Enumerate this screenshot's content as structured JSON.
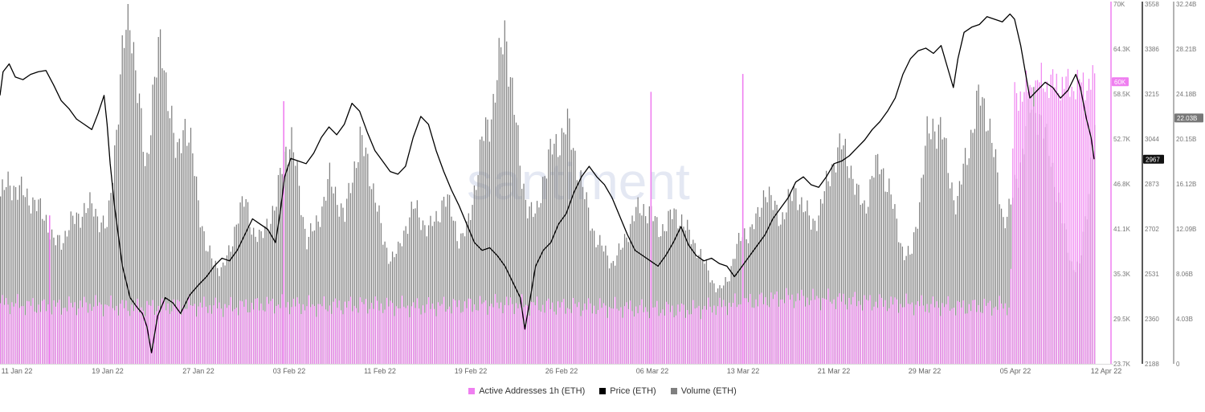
{
  "chart_data": {
    "type": "bar",
    "watermark": "santiment",
    "x_ticks": [
      "11 Jan 22",
      "19 Jan 22",
      "27 Jan 22",
      "03 Feb 22",
      "11 Feb 22",
      "19 Feb 22",
      "26 Feb 22",
      "06 Mar 22",
      "13 Mar 22",
      "21 Mar 22",
      "29 Mar 22",
      "05 Apr 22",
      "12 Apr 22"
    ],
    "axes": {
      "active_addresses": {
        "ticks": [
          "70K",
          "64.3K",
          "58.5K",
          "52.7K",
          "46.8K",
          "41.1K",
          "35.3K",
          "29.5K",
          "23.7K"
        ],
        "ylim": [
          23700,
          70000
        ],
        "last_value_label": "60K",
        "color": "#ef7ff0"
      },
      "price": {
        "ticks": [
          "3558",
          "3386",
          "3215",
          "3044",
          "2873",
          "2702",
          "2531",
          "2360",
          "2188"
        ],
        "ylim": [
          2188,
          3558
        ],
        "last_value_label": "2967",
        "color": "#000000"
      },
      "volume": {
        "ticks": [
          "32.24B",
          "28.21B",
          "24.18B",
          "20.15B",
          "16.12B",
          "12.09B",
          "8.06B",
          "4.03B",
          "0"
        ],
        "ylim": [
          0,
          32.24
        ],
        "last_value_label": "22.03B",
        "color": "#7f7f7f"
      }
    },
    "series": [
      {
        "name": "Active Addresses 1h (ETH)",
        "color": "#ef7ff0"
      },
      {
        "name": "Price (ETH)",
        "color": "#000000"
      },
      {
        "name": "Volume (ETH)",
        "color": "#7f7f7f"
      }
    ],
    "price_points": [
      {
        "x": 0.0,
        "y": 3210
      },
      {
        "x": 0.2,
        "y": 3300
      },
      {
        "x": 0.6,
        "y": 3330
      },
      {
        "x": 1.0,
        "y": 3280
      },
      {
        "x": 1.5,
        "y": 3270
      },
      {
        "x": 2.0,
        "y": 3290
      },
      {
        "x": 2.5,
        "y": 3300
      },
      {
        "x": 3.0,
        "y": 3305
      },
      {
        "x": 3.5,
        "y": 3250
      },
      {
        "x": 4.0,
        "y": 3190
      },
      {
        "x": 4.5,
        "y": 3160
      },
      {
        "x": 5.0,
        "y": 3120
      },
      {
        "x": 5.5,
        "y": 3100
      },
      {
        "x": 6.0,
        "y": 3080
      },
      {
        "x": 6.4,
        "y": 3140
      },
      {
        "x": 6.8,
        "y": 3210
      },
      {
        "x": 7.0,
        "y": 3100
      },
      {
        "x": 7.2,
        "y": 2950
      },
      {
        "x": 7.5,
        "y": 2780
      },
      {
        "x": 8.0,
        "y": 2560
      },
      {
        "x": 8.5,
        "y": 2440
      },
      {
        "x": 9.0,
        "y": 2400
      },
      {
        "x": 9.3,
        "y": 2380
      },
      {
        "x": 9.6,
        "y": 2330
      },
      {
        "x": 9.9,
        "y": 2230
      },
      {
        "x": 10.3,
        "y": 2370
      },
      {
        "x": 10.8,
        "y": 2440
      },
      {
        "x": 11.3,
        "y": 2420
      },
      {
        "x": 11.8,
        "y": 2380
      },
      {
        "x": 12.4,
        "y": 2450
      },
      {
        "x": 13.0,
        "y": 2490
      },
      {
        "x": 13.5,
        "y": 2520
      },
      {
        "x": 14.0,
        "y": 2560
      },
      {
        "x": 14.5,
        "y": 2590
      },
      {
        "x": 15.0,
        "y": 2580
      },
      {
        "x": 15.5,
        "y": 2620
      },
      {
        "x": 16.0,
        "y": 2680
      },
      {
        "x": 16.5,
        "y": 2740
      },
      {
        "x": 17.0,
        "y": 2720
      },
      {
        "x": 17.5,
        "y": 2700
      },
      {
        "x": 18.0,
        "y": 2650
      },
      {
        "x": 18.3,
        "y": 2760
      },
      {
        "x": 18.6,
        "y": 2900
      },
      {
        "x": 19.0,
        "y": 2970
      },
      {
        "x": 19.5,
        "y": 2960
      },
      {
        "x": 20.0,
        "y": 2950
      },
      {
        "x": 20.5,
        "y": 2990
      },
      {
        "x": 21.0,
        "y": 3050
      },
      {
        "x": 21.5,
        "y": 3090
      },
      {
        "x": 22.0,
        "y": 3060
      },
      {
        "x": 22.5,
        "y": 3100
      },
      {
        "x": 23.0,
        "y": 3180
      },
      {
        "x": 23.5,
        "y": 3150
      },
      {
        "x": 24.0,
        "y": 3070
      },
      {
        "x": 24.5,
        "y": 3000
      },
      {
        "x": 25.0,
        "y": 2960
      },
      {
        "x": 25.5,
        "y": 2920
      },
      {
        "x": 26.0,
        "y": 2910
      },
      {
        "x": 26.5,
        "y": 2940
      },
      {
        "x": 27.0,
        "y": 3050
      },
      {
        "x": 27.5,
        "y": 3130
      },
      {
        "x": 28.0,
        "y": 3100
      },
      {
        "x": 28.5,
        "y": 3000
      },
      {
        "x": 29.0,
        "y": 2920
      },
      {
        "x": 29.5,
        "y": 2850
      },
      {
        "x": 30.0,
        "y": 2790
      },
      {
        "x": 30.5,
        "y": 2720
      },
      {
        "x": 31.0,
        "y": 2650
      },
      {
        "x": 31.5,
        "y": 2620
      },
      {
        "x": 32.0,
        "y": 2630
      },
      {
        "x": 32.5,
        "y": 2600
      },
      {
        "x": 33.0,
        "y": 2560
      },
      {
        "x": 33.5,
        "y": 2500
      },
      {
        "x": 34.0,
        "y": 2440
      },
      {
        "x": 34.3,
        "y": 2320
      },
      {
        "x": 34.6,
        "y": 2420
      },
      {
        "x": 35.0,
        "y": 2560
      },
      {
        "x": 35.5,
        "y": 2620
      },
      {
        "x": 36.0,
        "y": 2650
      },
      {
        "x": 36.5,
        "y": 2720
      },
      {
        "x": 37.0,
        "y": 2760
      },
      {
        "x": 37.5,
        "y": 2840
      },
      {
        "x": 38.0,
        "y": 2900
      },
      {
        "x": 38.5,
        "y": 2940
      },
      {
        "x": 39.0,
        "y": 2900
      },
      {
        "x": 39.5,
        "y": 2870
      },
      {
        "x": 40.0,
        "y": 2820
      },
      {
        "x": 40.5,
        "y": 2750
      },
      {
        "x": 41.0,
        "y": 2680
      },
      {
        "x": 41.5,
        "y": 2620
      },
      {
        "x": 42.0,
        "y": 2600
      },
      {
        "x": 42.5,
        "y": 2580
      },
      {
        "x": 43.0,
        "y": 2560
      },
      {
        "x": 43.5,
        "y": 2600
      },
      {
        "x": 44.0,
        "y": 2650
      },
      {
        "x": 44.5,
        "y": 2710
      },
      {
        "x": 45.0,
        "y": 2640
      },
      {
        "x": 45.5,
        "y": 2600
      },
      {
        "x": 46.0,
        "y": 2580
      },
      {
        "x": 46.5,
        "y": 2590
      },
      {
        "x": 47.0,
        "y": 2570
      },
      {
        "x": 47.5,
        "y": 2560
      },
      {
        "x": 48.0,
        "y": 2520
      },
      {
        "x": 48.5,
        "y": 2560
      },
      {
        "x": 49.0,
        "y": 2600
      },
      {
        "x": 49.5,
        "y": 2640
      },
      {
        "x": 50.0,
        "y": 2680
      },
      {
        "x": 50.5,
        "y": 2740
      },
      {
        "x": 51.0,
        "y": 2780
      },
      {
        "x": 51.5,
        "y": 2820
      },
      {
        "x": 52.0,
        "y": 2880
      },
      {
        "x": 52.5,
        "y": 2900
      },
      {
        "x": 53.0,
        "y": 2870
      },
      {
        "x": 53.5,
        "y": 2860
      },
      {
        "x": 54.0,
        "y": 2900
      },
      {
        "x": 54.5,
        "y": 2950
      },
      {
        "x": 55.0,
        "y": 2960
      },
      {
        "x": 55.5,
        "y": 2980
      },
      {
        "x": 56.0,
        "y": 3010
      },
      {
        "x": 56.5,
        "y": 3040
      },
      {
        "x": 57.0,
        "y": 3080
      },
      {
        "x": 57.5,
        "y": 3110
      },
      {
        "x": 58.0,
        "y": 3150
      },
      {
        "x": 58.5,
        "y": 3200
      },
      {
        "x": 59.0,
        "y": 3290
      },
      {
        "x": 59.5,
        "y": 3350
      },
      {
        "x": 60.0,
        "y": 3380
      },
      {
        "x": 60.5,
        "y": 3390
      },
      {
        "x": 61.0,
        "y": 3370
      },
      {
        "x": 61.5,
        "y": 3400
      },
      {
        "x": 62.0,
        "y": 3300
      },
      {
        "x": 62.3,
        "y": 3240
      },
      {
        "x": 62.6,
        "y": 3350
      },
      {
        "x": 63.0,
        "y": 3450
      },
      {
        "x": 63.5,
        "y": 3470
      },
      {
        "x": 64.0,
        "y": 3480
      },
      {
        "x": 64.5,
        "y": 3510
      },
      {
        "x": 65.0,
        "y": 3500
      },
      {
        "x": 65.5,
        "y": 3490
      },
      {
        "x": 66.0,
        "y": 3520
      },
      {
        "x": 66.3,
        "y": 3500
      },
      {
        "x": 66.7,
        "y": 3400
      },
      {
        "x": 67.0,
        "y": 3300
      },
      {
        "x": 67.3,
        "y": 3200
      },
      {
        "x": 67.8,
        "y": 3230
      },
      {
        "x": 68.3,
        "y": 3260
      },
      {
        "x": 68.8,
        "y": 3240
      },
      {
        "x": 69.3,
        "y": 3200
      },
      {
        "x": 69.8,
        "y": 3230
      },
      {
        "x": 70.3,
        "y": 3290
      },
      {
        "x": 70.6,
        "y": 3240
      },
      {
        "x": 71.0,
        "y": 3120
      },
      {
        "x": 71.3,
        "y": 3050
      },
      {
        "x": 71.5,
        "y": 2967
      }
    ],
    "volume_profile": [
      {
        "x": 0.0,
        "y": 15.0
      },
      {
        "x": 0.6,
        "y": 16.3
      },
      {
        "x": 1.2,
        "y": 15.5
      },
      {
        "x": 2.0,
        "y": 14.8
      },
      {
        "x": 3.0,
        "y": 13.0
      },
      {
        "x": 3.5,
        "y": 10.8
      },
      {
        "x": 4.0,
        "y": 11.0
      },
      {
        "x": 4.5,
        "y": 12.5
      },
      {
        "x": 5.0,
        "y": 13.0
      },
      {
        "x": 5.5,
        "y": 14.0
      },
      {
        "x": 6.0,
        "y": 14.0
      },
      {
        "x": 6.5,
        "y": 13.0
      },
      {
        "x": 7.0,
        "y": 12.0
      },
      {
        "x": 7.5,
        "y": 20.0
      },
      {
        "x": 8.0,
        "y": 28.0
      },
      {
        "x": 8.5,
        "y": 31.5
      },
      {
        "x": 9.0,
        "y": 24.0
      },
      {
        "x": 9.5,
        "y": 17.0
      },
      {
        "x": 10.0,
        "y": 25.0
      },
      {
        "x": 10.5,
        "y": 28.5
      },
      {
        "x": 11.0,
        "y": 24.0
      },
      {
        "x": 11.5,
        "y": 18.0
      },
      {
        "x": 12.0,
        "y": 22.0
      },
      {
        "x": 12.5,
        "y": 19.0
      },
      {
        "x": 13.0,
        "y": 14.0
      },
      {
        "x": 13.5,
        "y": 10.0
      },
      {
        "x": 14.0,
        "y": 9.0
      },
      {
        "x": 14.5,
        "y": 8.5
      },
      {
        "x": 15.0,
        "y": 10.0
      },
      {
        "x": 15.5,
        "y": 13.5
      },
      {
        "x": 16.0,
        "y": 14.5
      },
      {
        "x": 16.5,
        "y": 12.0
      },
      {
        "x": 17.0,
        "y": 11.0
      },
      {
        "x": 17.5,
        "y": 13.0
      },
      {
        "x": 18.0,
        "y": 14.0
      },
      {
        "x": 18.5,
        "y": 19.0
      },
      {
        "x": 19.0,
        "y": 20.0
      },
      {
        "x": 19.5,
        "y": 16.0
      },
      {
        "x": 20.0,
        "y": 11.0
      },
      {
        "x": 20.5,
        "y": 12.0
      },
      {
        "x": 21.0,
        "y": 14.0
      },
      {
        "x": 21.5,
        "y": 16.5
      },
      {
        "x": 22.0,
        "y": 15.0
      },
      {
        "x": 22.5,
        "y": 13.0
      },
      {
        "x": 23.0,
        "y": 17.0
      },
      {
        "x": 23.5,
        "y": 20.0
      },
      {
        "x": 24.0,
        "y": 18.0
      },
      {
        "x": 24.5,
        "y": 15.0
      },
      {
        "x": 25.0,
        "y": 11.0
      },
      {
        "x": 25.5,
        "y": 9.5
      },
      {
        "x": 26.0,
        "y": 10.0
      },
      {
        "x": 26.5,
        "y": 12.5
      },
      {
        "x": 27.0,
        "y": 14.0
      },
      {
        "x": 27.5,
        "y": 13.0
      },
      {
        "x": 28.0,
        "y": 12.0
      },
      {
        "x": 28.5,
        "y": 13.0
      },
      {
        "x": 29.0,
        "y": 15.0
      },
      {
        "x": 29.5,
        "y": 13.5
      },
      {
        "x": 30.0,
        "y": 11.0
      },
      {
        "x": 30.5,
        "y": 12.0
      },
      {
        "x": 31.0,
        "y": 16.0
      },
      {
        "x": 31.5,
        "y": 20.0
      },
      {
        "x": 32.0,
        "y": 22.0
      },
      {
        "x": 32.5,
        "y": 26.0
      },
      {
        "x": 33.0,
        "y": 30.0
      },
      {
        "x": 33.5,
        "y": 24.0
      },
      {
        "x": 34.0,
        "y": 17.0
      },
      {
        "x": 34.5,
        "y": 14.0
      },
      {
        "x": 35.0,
        "y": 13.0
      },
      {
        "x": 35.5,
        "y": 17.0
      },
      {
        "x": 36.0,
        "y": 19.0
      },
      {
        "x": 36.5,
        "y": 20.0
      },
      {
        "x": 37.0,
        "y": 21.5
      },
      {
        "x": 37.5,
        "y": 19.0
      },
      {
        "x": 38.0,
        "y": 16.0
      },
      {
        "x": 38.5,
        "y": 13.0
      },
      {
        "x": 39.0,
        "y": 11.0
      },
      {
        "x": 39.5,
        "y": 10.0
      },
      {
        "x": 40.0,
        "y": 9.0
      },
      {
        "x": 40.5,
        "y": 10.0
      },
      {
        "x": 41.0,
        "y": 12.0
      },
      {
        "x": 41.5,
        "y": 13.5
      },
      {
        "x": 42.0,
        "y": 14.0
      },
      {
        "x": 42.5,
        "y": 13.5
      },
      {
        "x": 43.0,
        "y": 12.0
      },
      {
        "x": 43.5,
        "y": 12.5
      },
      {
        "x": 44.0,
        "y": 13.5
      },
      {
        "x": 44.5,
        "y": 13.0
      },
      {
        "x": 45.0,
        "y": 11.5
      },
      {
        "x": 45.5,
        "y": 10.5
      },
      {
        "x": 46.0,
        "y": 9.0
      },
      {
        "x": 46.5,
        "y": 7.5
      },
      {
        "x": 47.0,
        "y": 6.5
      },
      {
        "x": 47.5,
        "y": 7.5
      },
      {
        "x": 48.0,
        "y": 10.0
      },
      {
        "x": 48.5,
        "y": 11.5
      },
      {
        "x": 49.0,
        "y": 12.0
      },
      {
        "x": 49.5,
        "y": 13.0
      },
      {
        "x": 50.0,
        "y": 16.0
      },
      {
        "x": 50.5,
        "y": 14.0
      },
      {
        "x": 51.0,
        "y": 13.0
      },
      {
        "x": 51.5,
        "y": 14.5
      },
      {
        "x": 52.0,
        "y": 15.5
      },
      {
        "x": 52.5,
        "y": 14.0
      },
      {
        "x": 53.0,
        "y": 12.5
      },
      {
        "x": 53.5,
        "y": 13.5
      },
      {
        "x": 54.0,
        "y": 16.0
      },
      {
        "x": 54.5,
        "y": 18.5
      },
      {
        "x": 55.0,
        "y": 19.5
      },
      {
        "x": 55.5,
        "y": 18.0
      },
      {
        "x": 56.0,
        "y": 15.0
      },
      {
        "x": 56.5,
        "y": 14.0
      },
      {
        "x": 57.0,
        "y": 17.0
      },
      {
        "x": 57.5,
        "y": 18.0
      },
      {
        "x": 58.0,
        "y": 16.0
      },
      {
        "x": 58.5,
        "y": 13.0
      },
      {
        "x": 59.0,
        "y": 10.0
      },
      {
        "x": 59.5,
        "y": 9.5
      },
      {
        "x": 60.0,
        "y": 14.0
      },
      {
        "x": 60.5,
        "y": 20.0
      },
      {
        "x": 61.0,
        "y": 21.5
      },
      {
        "x": 61.5,
        "y": 21.0
      },
      {
        "x": 62.0,
        "y": 17.0
      },
      {
        "x": 62.5,
        "y": 14.0
      },
      {
        "x": 63.0,
        "y": 18.0
      },
      {
        "x": 63.5,
        "y": 21.0
      },
      {
        "x": 64.0,
        "y": 24.0
      },
      {
        "x": 64.5,
        "y": 22.5
      },
      {
        "x": 65.0,
        "y": 18.0
      },
      {
        "x": 65.5,
        "y": 13.0
      },
      {
        "x": 66.0,
        "y": 14.0
      },
      {
        "x": 66.5,
        "y": 17.0
      },
      {
        "x": 67.0,
        "y": 21.0
      },
      {
        "x": 67.5,
        "y": 23.5
      },
      {
        "x": 68.0,
        "y": 22.0
      },
      {
        "x": 68.5,
        "y": 19.0
      },
      {
        "x": 69.0,
        "y": 16.0
      },
      {
        "x": 69.5,
        "y": 12.0
      },
      {
        "x": 70.0,
        "y": 9.0
      },
      {
        "x": 70.5,
        "y": 8.5
      },
      {
        "x": 71.0,
        "y": 14.0
      },
      {
        "x": 71.5,
        "y": 22.0
      }
    ],
    "active_addresses_profile": [
      {
        "x": 0.0,
        "y": 31500
      },
      {
        "x": 3.0,
        "y": 31000
      },
      {
        "x": 6.0,
        "y": 31300
      },
      {
        "x": 9.0,
        "y": 30900
      },
      {
        "x": 12.0,
        "y": 31200
      },
      {
        "x": 15.0,
        "y": 31000
      },
      {
        "x": 18.0,
        "y": 31400
      },
      {
        "x": 21.0,
        "y": 31100
      },
      {
        "x": 24.0,
        "y": 31300
      },
      {
        "x": 27.0,
        "y": 31000
      },
      {
        "x": 30.0,
        "y": 31200
      },
      {
        "x": 33.0,
        "y": 31400
      },
      {
        "x": 36.0,
        "y": 31100
      },
      {
        "x": 39.0,
        "y": 31000
      },
      {
        "x": 42.0,
        "y": 30800
      },
      {
        "x": 45.0,
        "y": 30600
      },
      {
        "x": 48.0,
        "y": 31400
      },
      {
        "x": 51.0,
        "y": 32200
      },
      {
        "x": 54.0,
        "y": 32000
      },
      {
        "x": 57.0,
        "y": 31600
      },
      {
        "x": 60.0,
        "y": 31300
      },
      {
        "x": 63.0,
        "y": 31000
      },
      {
        "x": 66.0,
        "y": 31200
      },
      {
        "x": 66.2,
        "y": 58000
      },
      {
        "x": 68.0,
        "y": 60000
      },
      {
        "x": 70.0,
        "y": 59500
      },
      {
        "x": 71.5,
        "y": 60000
      }
    ],
    "active_addresses_spikes": [
      {
        "x": 3.2,
        "y": 42800
      },
      {
        "x": 18.5,
        "y": 57500
      },
      {
        "x": 42.5,
        "y": 58700
      },
      {
        "x": 48.5,
        "y": 61000
      }
    ]
  },
  "legend": {
    "active_addresses": "Active Addresses 1h (ETH)",
    "price": "Price (ETH)",
    "volume": "Volume (ETH)"
  },
  "colors": {
    "active_addresses": "#ef7ff0",
    "price": "#000000",
    "volume": "#7f7f7f"
  }
}
